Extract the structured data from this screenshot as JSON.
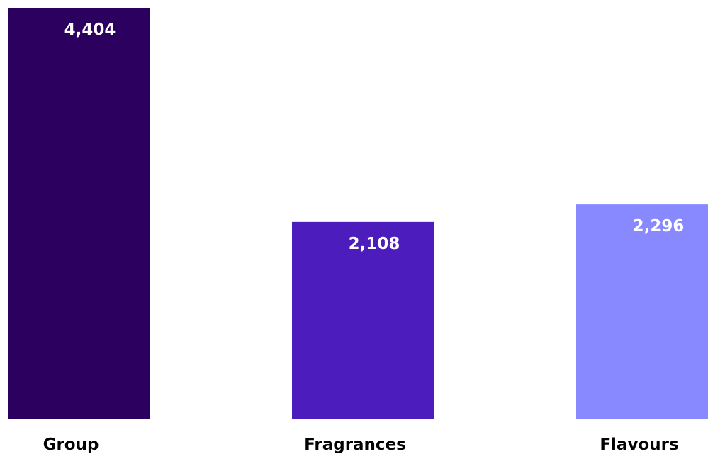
{
  "chart_data": {
    "type": "bar",
    "categories": [
      "Group",
      "Fragrances",
      "Flavours"
    ],
    "values": [
      4404,
      2108,
      2296
    ],
    "value_labels": [
      "4,404",
      "2,108",
      "2,296"
    ],
    "colors": [
      "#2c005e",
      "#4c1cbc",
      "#8888ff"
    ],
    "title": "",
    "xlabel": "",
    "ylabel": "",
    "ylim": [
      0,
      4404
    ],
    "grid": false,
    "legend": "none"
  }
}
